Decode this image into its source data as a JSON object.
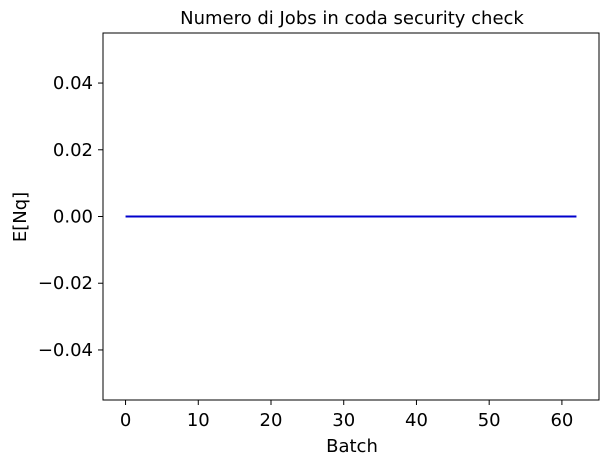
{
  "chart_data": {
    "type": "line",
    "title": "Numero di Jobs in coda security check",
    "xlabel": "Batch",
    "ylabel": "E[Nq]",
    "xlim": [
      -3.1,
      65.1
    ],
    "ylim": [
      -0.055,
      0.055
    ],
    "x_ticks": [
      0,
      10,
      20,
      30,
      40,
      50,
      60
    ],
    "x_tick_labels": [
      "0",
      "10",
      "20",
      "30",
      "40",
      "50",
      "60"
    ],
    "y_ticks": [
      0.04,
      0.02,
      0.0,
      -0.02,
      -0.04
    ],
    "y_tick_labels": [
      "0.04",
      "0.02",
      "0.00",
      "−0.02",
      "−0.04"
    ],
    "grid": false,
    "series": [
      {
        "color": "#0000cc",
        "x": [
          0,
          62
        ],
        "y": [
          0,
          0
        ]
      }
    ]
  }
}
